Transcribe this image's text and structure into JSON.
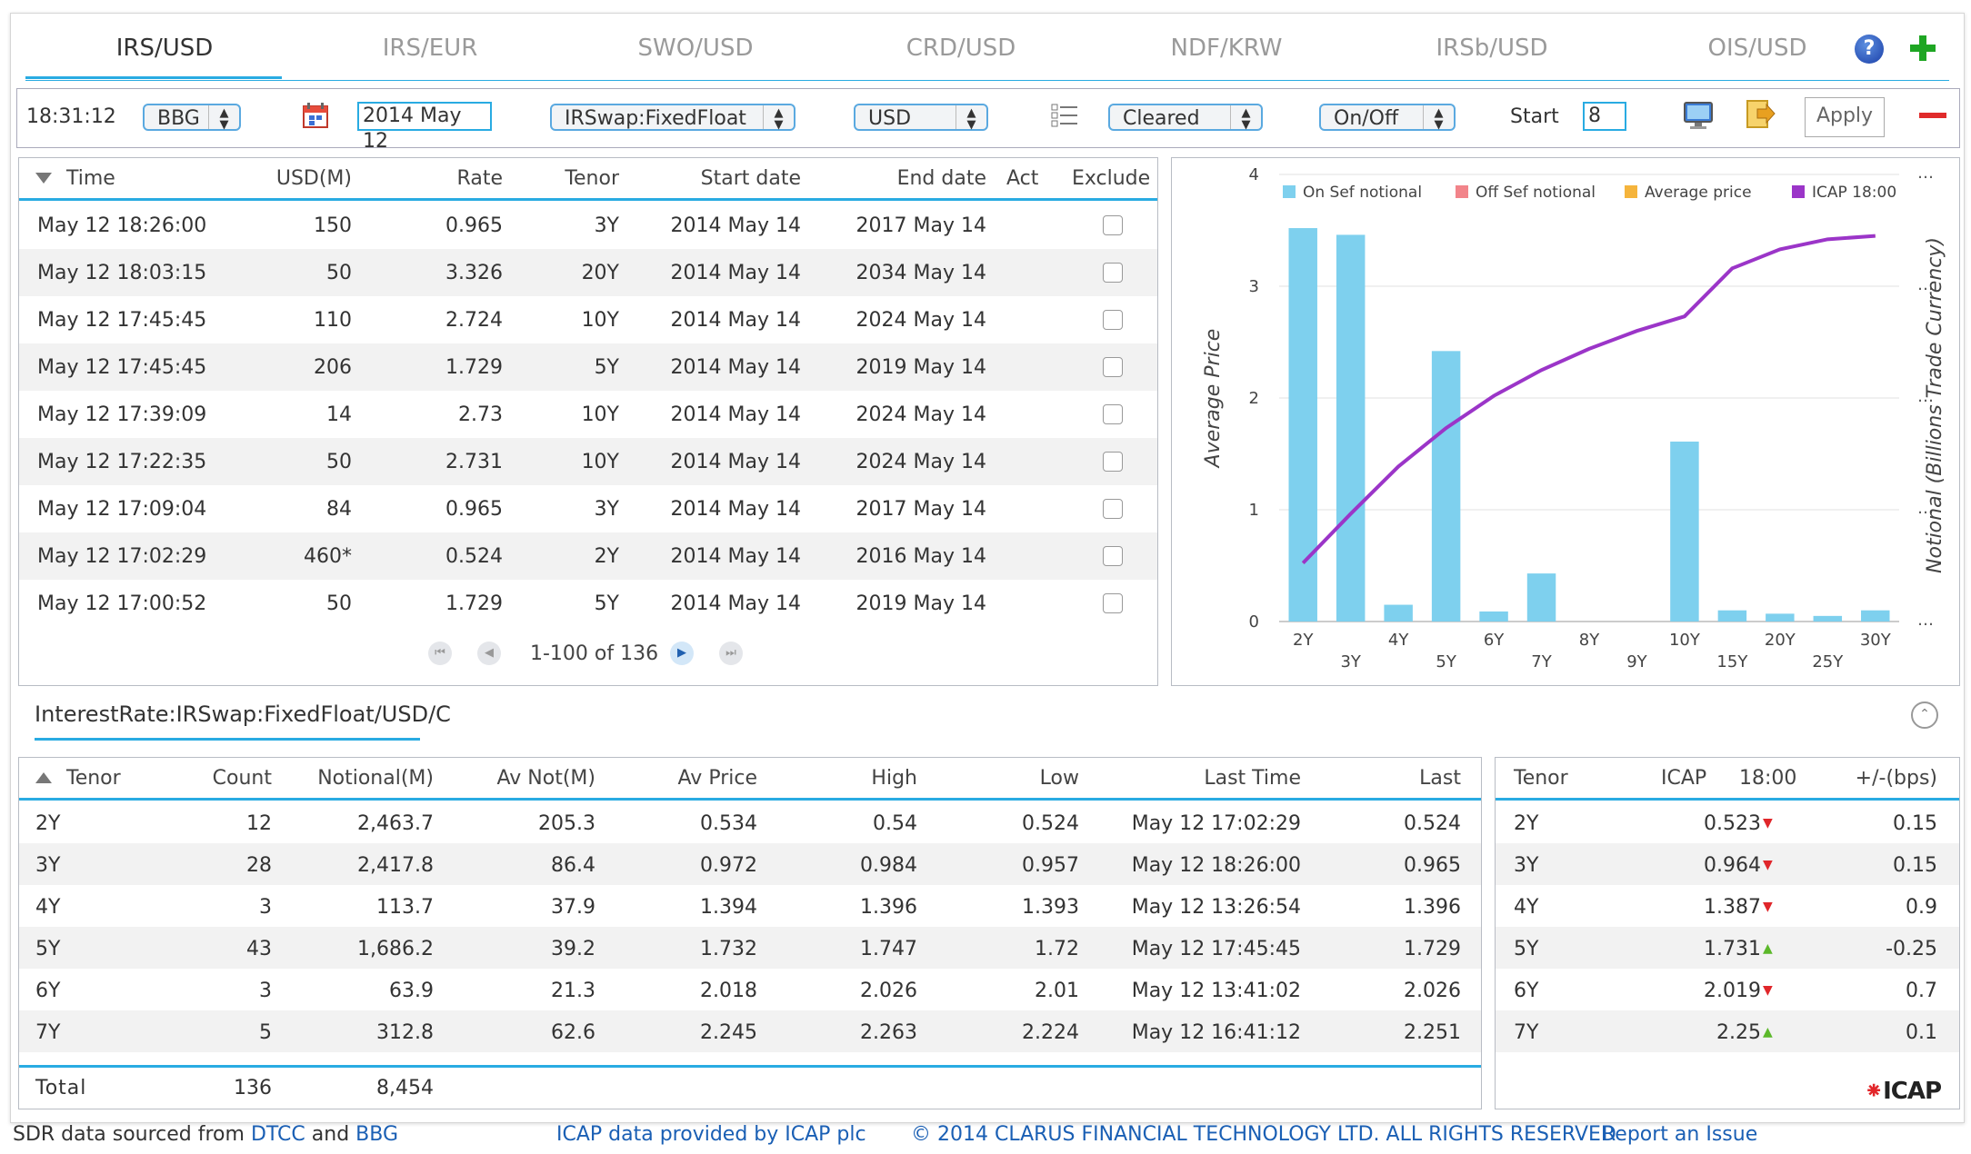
{
  "tabs": [
    "IRS/USD",
    "IRS/EUR",
    "SWO/USD",
    "CRD/USD",
    "NDF/KRW",
    "IRSb/USD",
    "OIS/USD"
  ],
  "active_tab": "IRS/USD",
  "toolbar": {
    "time": "18:31:12",
    "source": "BBG",
    "date": "2014 May 12",
    "product": "IRSwap:FixedFloat",
    "currency": "USD",
    "clearing": "Cleared",
    "sef": "On/Off",
    "start_label": "Start",
    "start_value": "8",
    "apply_label": "Apply"
  },
  "trades": {
    "columns": [
      "Time",
      "USD(M)",
      "Rate",
      "Tenor",
      "Start date",
      "End date",
      "Act",
      "Exclude"
    ],
    "rows": [
      [
        "May 12 18:26:00",
        "150",
        "0.965",
        "3Y",
        "2014 May 14",
        "2017 May 14"
      ],
      [
        "May 12 18:03:15",
        "50",
        "3.326",
        "20Y",
        "2014 May 14",
        "2034 May 14"
      ],
      [
        "May 12 17:45:45",
        "110",
        "2.724",
        "10Y",
        "2014 May 14",
        "2024 May 14"
      ],
      [
        "May 12 17:45:45",
        "206",
        "1.729",
        "5Y",
        "2014 May 14",
        "2019 May 14"
      ],
      [
        "May 12 17:39:09",
        "14",
        "2.73",
        "10Y",
        "2014 May 14",
        "2024 May 14"
      ],
      [
        "May 12 17:22:35",
        "50",
        "2.731",
        "10Y",
        "2014 May 14",
        "2024 May 14"
      ],
      [
        "May 12 17:09:04",
        "84",
        "0.965",
        "3Y",
        "2014 May 14",
        "2017 May 14"
      ],
      [
        "May 12 17:02:29",
        "460*",
        "0.524",
        "2Y",
        "2014 May 14",
        "2016 May 14"
      ],
      [
        "May 12 17:00:52",
        "50",
        "1.729",
        "5Y",
        "2014 May 14",
        "2019 May 14"
      ]
    ],
    "pager_text": "1-100 of 136"
  },
  "chart_data": {
    "type": "bar",
    "title": "",
    "ylabel": "Average Price",
    "ylabel_right": "Notional (Billions Trade Currency)",
    "ylim": [
      0,
      4
    ],
    "yticks": [
      "0",
      "1",
      "2",
      "3",
      "4"
    ],
    "categories": [
      "2Y",
      "3Y",
      "4Y",
      "5Y",
      "6Y",
      "7Y",
      "8Y",
      "9Y",
      "10Y",
      "15Y",
      "20Y",
      "25Y",
      "30Y"
    ],
    "legend_position": "top",
    "legend": [
      "On Sef notional",
      "Off Sef notional",
      "Average price",
      "ICAP 18:00"
    ],
    "colors": {
      "on_sef": "#7ed0ee",
      "off_sef": "#f2848a",
      "average": "#f5b43c",
      "icap": "#9b35c8"
    },
    "series": [
      {
        "name": "On Sef notional",
        "kind": "bar",
        "values": [
          3.52,
          3.46,
          0.15,
          2.42,
          0.09,
          0.43,
          0,
          0,
          1.61,
          0.1,
          0.07,
          0.05,
          0.1
        ]
      },
      {
        "name": "ICAP 18:00",
        "kind": "line",
        "values": [
          0.523,
          0.964,
          1.387,
          1.731,
          2.019,
          2.25,
          2.44,
          2.6,
          2.73,
          3.16,
          3.33,
          3.42,
          3.45
        ]
      }
    ]
  },
  "path_label": "InterestRate:IRSwap:FixedFloat/USD/C",
  "summary": {
    "columns": [
      "Tenor",
      "Count",
      "Notional(M)",
      "Av Not(M)",
      "Av Price",
      "High",
      "Low",
      "Last Time",
      "Last"
    ],
    "rows": [
      [
        "2Y",
        "12",
        "2,463.7",
        "205.3",
        "0.534",
        "0.54",
        "0.524",
        "May 12 17:02:29",
        "0.524"
      ],
      [
        "3Y",
        "28",
        "2,417.8",
        "86.4",
        "0.972",
        "0.984",
        "0.957",
        "May 12 18:26:00",
        "0.965"
      ],
      [
        "4Y",
        "3",
        "113.7",
        "37.9",
        "1.394",
        "1.396",
        "1.393",
        "May 12 13:26:54",
        "1.396"
      ],
      [
        "5Y",
        "43",
        "1,686.2",
        "39.2",
        "1.732",
        "1.747",
        "1.72",
        "May 12 17:45:45",
        "1.729"
      ],
      [
        "6Y",
        "3",
        "63.9",
        "21.3",
        "2.018",
        "2.026",
        "2.01",
        "May 12 13:41:02",
        "2.026"
      ],
      [
        "7Y",
        "5",
        "312.8",
        "62.6",
        "2.245",
        "2.263",
        "2.224",
        "May 12 16:41:12",
        "2.251"
      ]
    ],
    "total_label": "Total",
    "total_count": "136",
    "total_notional": "8,454"
  },
  "icap": {
    "columns": [
      "Tenor",
      "ICAP",
      "18:00",
      "+/-(bps)"
    ],
    "rows": [
      {
        "tenor": "2Y",
        "value": "0.523",
        "dir": "down",
        "bps": "0.15"
      },
      {
        "tenor": "3Y",
        "value": "0.964",
        "dir": "down",
        "bps": "0.15"
      },
      {
        "tenor": "4Y",
        "value": "1.387",
        "dir": "down",
        "bps": "0.9"
      },
      {
        "tenor": "5Y",
        "value": "1.731",
        "dir": "up",
        "bps": "-0.25"
      },
      {
        "tenor": "6Y",
        "value": "2.019",
        "dir": "down",
        "bps": "0.7"
      },
      {
        "tenor": "7Y",
        "value": "2.25",
        "dir": "up",
        "bps": "0.1"
      }
    ],
    "logo": "ICAP"
  },
  "footer": {
    "sdr_prefix": "SDR data sourced from",
    "dtcc": "DTCC",
    "and": "and",
    "bbg": "BBG",
    "icap_credit": "ICAP data provided by ICAP plc",
    "copyright": "© 2014 CLARUS FINANCIAL TECHNOLOGY LTD. ALL RIGHTS RESERVED",
    "report": "Report an Issue"
  }
}
